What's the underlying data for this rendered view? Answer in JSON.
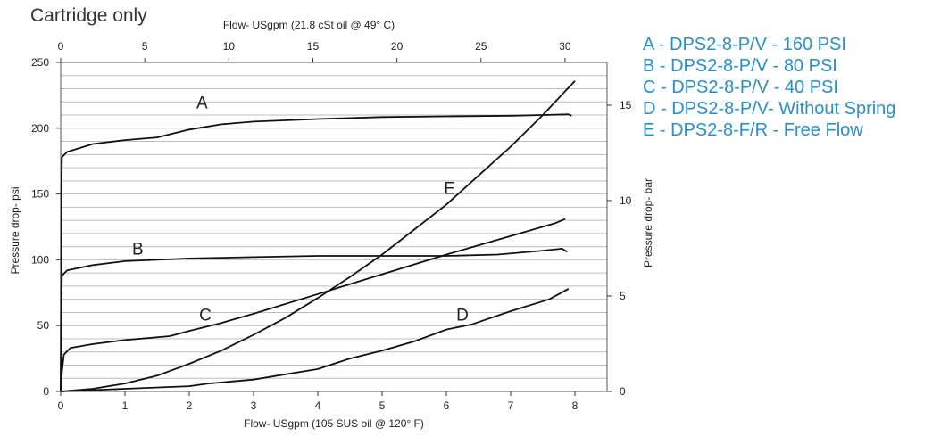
{
  "page": {
    "title": "Cartridge only"
  },
  "colors": {
    "curve": "#111111",
    "grid": "#bdbdbd",
    "legend": "#2a8fc7"
  },
  "chart_data": {
    "type": "line",
    "xlabel": "Flow- USgpm (105 SUS oil @ 120° F)",
    "x2label": "Flow- USgpm (21.8 cSt oil @ 49° C)",
    "ylabel": "Pressure drop- psi",
    "y2label": "Pressure drop- bar",
    "xlim": [
      0,
      8.5
    ],
    "x2lim": [
      0,
      32.5
    ],
    "ylim": [
      0,
      250
    ],
    "y2lim": [
      0,
      17.24
    ],
    "xticks": [
      0,
      1,
      2,
      3,
      4,
      5,
      6,
      7,
      8
    ],
    "x2ticks": [
      0,
      5,
      10,
      15,
      20,
      25,
      30
    ],
    "yticks": [
      0,
      50,
      100,
      150,
      200,
      250
    ],
    "y2ticks": [
      0,
      5,
      10,
      15
    ],
    "grid": {
      "horizontal_step": 10,
      "vertical": false
    },
    "legend_position": "right",
    "legend": [
      "A - DPS2-8-P/V - 160 PSI",
      "B - DPS2-8-P/V - 80 PSI",
      "C - DPS2-8-P/V - 40 PSI",
      "D - DPS2-8-P/V- Without Spring",
      "E - DPS2-8-F/R - Free Flow"
    ],
    "series": [
      {
        "name": "A",
        "points": [
          [
            0,
            0
          ],
          [
            0.01,
            150
          ],
          [
            0.02,
            178
          ],
          [
            0.1,
            182
          ],
          [
            0.5,
            188
          ],
          [
            1,
            191
          ],
          [
            1.5,
            193
          ],
          [
            2,
            199
          ],
          [
            2.5,
            203
          ],
          [
            3,
            205
          ],
          [
            4,
            207
          ],
          [
            5,
            208.5
          ],
          [
            6,
            209
          ],
          [
            7,
            209.5
          ],
          [
            7.5,
            210
          ],
          [
            7.9,
            210.5
          ],
          [
            7.95,
            209.5
          ]
        ]
      },
      {
        "name": "B",
        "points": [
          [
            0,
            0
          ],
          [
            0.01,
            70
          ],
          [
            0.02,
            88
          ],
          [
            0.1,
            92
          ],
          [
            0.5,
            96
          ],
          [
            1,
            99
          ],
          [
            2,
            101
          ],
          [
            3,
            102
          ],
          [
            4,
            103
          ],
          [
            5,
            103
          ],
          [
            6,
            103
          ],
          [
            6.8,
            104
          ],
          [
            7.5,
            107
          ],
          [
            7.8,
            108.5
          ],
          [
            7.88,
            106
          ]
        ]
      },
      {
        "name": "C",
        "points": [
          [
            0,
            0
          ],
          [
            0.02,
            15
          ],
          [
            0.05,
            28
          ],
          [
            0.15,
            33
          ],
          [
            0.5,
            36
          ],
          [
            1,
            39
          ],
          [
            1.7,
            42
          ],
          [
            2,
            46
          ],
          [
            2.5,
            52
          ],
          [
            3,
            59
          ],
          [
            4,
            74
          ],
          [
            5,
            89
          ],
          [
            6,
            104
          ],
          [
            7,
            118
          ],
          [
            7.7,
            128
          ],
          [
            7.85,
            131
          ]
        ]
      },
      {
        "name": "D",
        "points": [
          [
            0,
            0
          ],
          [
            0.5,
            1
          ],
          [
            1,
            2
          ],
          [
            2,
            4
          ],
          [
            2.3,
            6
          ],
          [
            3,
            9
          ],
          [
            4,
            17
          ],
          [
            4.5,
            25
          ],
          [
            5,
            31
          ],
          [
            5.5,
            38
          ],
          [
            6,
            47
          ],
          [
            6.4,
            51
          ],
          [
            7,
            61
          ],
          [
            7.6,
            70
          ],
          [
            7.9,
            78
          ]
        ]
      },
      {
        "name": "E",
        "points": [
          [
            0,
            0
          ],
          [
            0.5,
            2
          ],
          [
            1,
            6
          ],
          [
            1.5,
            12
          ],
          [
            2,
            21
          ],
          [
            2.5,
            31
          ],
          [
            3,
            43
          ],
          [
            3.5,
            56
          ],
          [
            4,
            71
          ],
          [
            4.5,
            87
          ],
          [
            5,
            104
          ],
          [
            5.5,
            123
          ],
          [
            6,
            142
          ],
          [
            6.5,
            164
          ],
          [
            7,
            186
          ],
          [
            7.5,
            210
          ],
          [
            8,
            236
          ]
        ]
      }
    ],
    "curve_labels": [
      {
        "text": "A",
        "x": 2.2,
        "y": 215
      },
      {
        "text": "B",
        "x": 1.2,
        "y": 104
      },
      {
        "text": "C",
        "x": 2.25,
        "y": 54
      },
      {
        "text": "D",
        "x": 6.25,
        "y": 54
      },
      {
        "text": "E",
        "x": 6.05,
        "y": 150
      }
    ]
  }
}
